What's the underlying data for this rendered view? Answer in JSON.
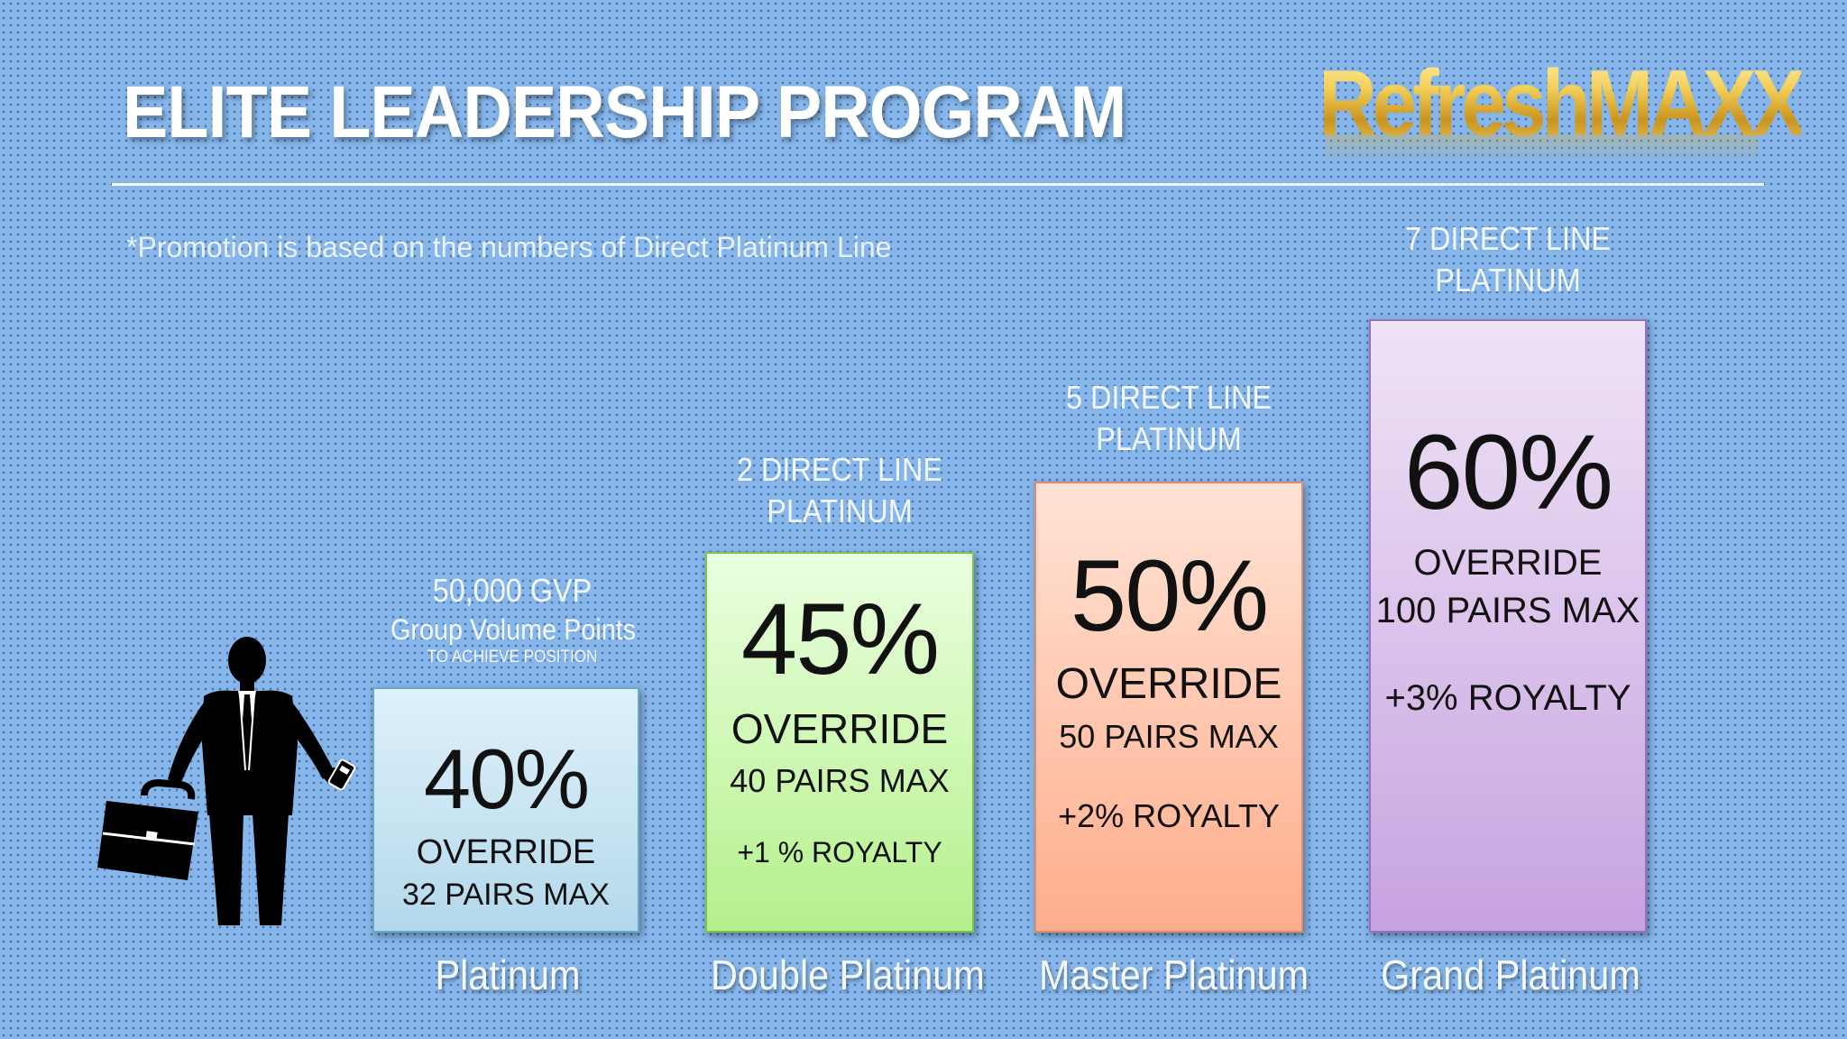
{
  "header": {
    "title": "ELITE LEADERSHIP PROGRAM",
    "logo_text": "RefreshMAXX"
  },
  "note": "*Promotion is based on the numbers of Direct Platinum Line",
  "ranks": [
    {
      "name": "Platinum",
      "requirement": [
        "50,000 GVP",
        "Group Volume Points",
        "TO ACHIEVE POSITION"
      ],
      "percent": "40%",
      "override": "OVERRIDE",
      "pairs": "32 PAIRS MAX",
      "royalty": ""
    },
    {
      "name": "Double Platinum",
      "requirement": [
        "2 DIRECT LINE",
        "PLATINUM"
      ],
      "percent": "45%",
      "override": "OVERRIDE",
      "pairs": "40 PAIRS MAX",
      "royalty": "+1 % ROYALTY"
    },
    {
      "name": "Master Platinum",
      "requirement": [
        "5 DIRECT LINE",
        "PLATINUM"
      ],
      "percent": "50%",
      "override": "OVERRIDE",
      "pairs": "50 PAIRS MAX",
      "royalty": "+2% ROYALTY"
    },
    {
      "name": "Grand Platinum",
      "requirement": [
        "7 DIRECT LINE",
        "PLATINUM"
      ],
      "percent": "60%",
      "override": "OVERRIDE",
      "pairs": "100 PAIRS MAX",
      "royalty": "+3% ROYALTY"
    }
  ],
  "colors": {
    "background": "#86b6ea",
    "platinum": "#b3d8ea",
    "double_platinum": "#b5f08c",
    "master_platinum": "#ffae8c",
    "grand_platinum": "#c7a3e0",
    "logo_gold": "#d8ad2e"
  },
  "icons": [
    "businessman-icon",
    "briefcase-icon",
    "phone-icon"
  ]
}
